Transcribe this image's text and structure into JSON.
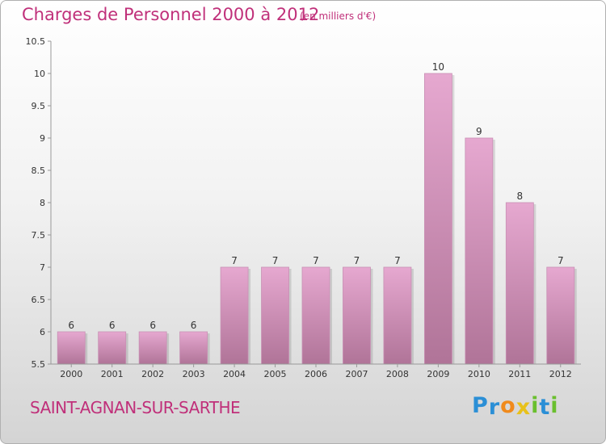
{
  "header": {
    "title": "Charges de Personnel 2000 à 2012",
    "unit": "(en milliers d'€)"
  },
  "footer": {
    "commune": "SAINT-AGNAN-SUR-SARTHE",
    "logo_letters": [
      {
        "char": "P",
        "color": "#2b8fd6"
      },
      {
        "char": "r",
        "color": "#2b8fd6"
      },
      {
        "char": "o",
        "color": "#f08a1c"
      },
      {
        "char": "x",
        "color": "#e8c11a"
      },
      {
        "char": "i",
        "color": "#6abf2e"
      },
      {
        "char": "t",
        "color": "#2b8fd6"
      },
      {
        "char": "i",
        "color": "#6abf2e"
      }
    ]
  },
  "colors": {
    "accent": "#c0307a",
    "bar_top": "#e6a8d0",
    "bar_bottom": "#b07498",
    "axis": "#999999"
  },
  "chart_data": {
    "type": "bar",
    "title": "Charges de Personnel 2000 à 2012",
    "subtitle": "(en milliers d'€)",
    "xlabel": "",
    "ylabel": "",
    "categories": [
      "2000",
      "2001",
      "2002",
      "2003",
      "2004",
      "2005",
      "2006",
      "2007",
      "2008",
      "2009",
      "2010",
      "2011",
      "2012"
    ],
    "values": [
      6,
      6,
      6,
      6,
      7,
      7,
      7,
      7,
      7,
      10,
      9,
      8,
      7
    ],
    "data_labels": [
      "6",
      "6",
      "6",
      "6",
      "7",
      "7",
      "7",
      "7",
      "7",
      "10",
      "9",
      "8",
      "7"
    ],
    "ylim": [
      5.5,
      10.5
    ],
    "yticks": [
      5.5,
      6,
      6.5,
      7,
      7.5,
      8,
      8.5,
      9,
      9.5,
      10,
      10.5
    ],
    "ytick_labels": [
      "5.5",
      "6",
      "6.5",
      "7",
      "7.5",
      "8",
      "8.5",
      "9",
      "9.5",
      "10",
      "10.5"
    ],
    "grid": false,
    "legend": "none"
  }
}
